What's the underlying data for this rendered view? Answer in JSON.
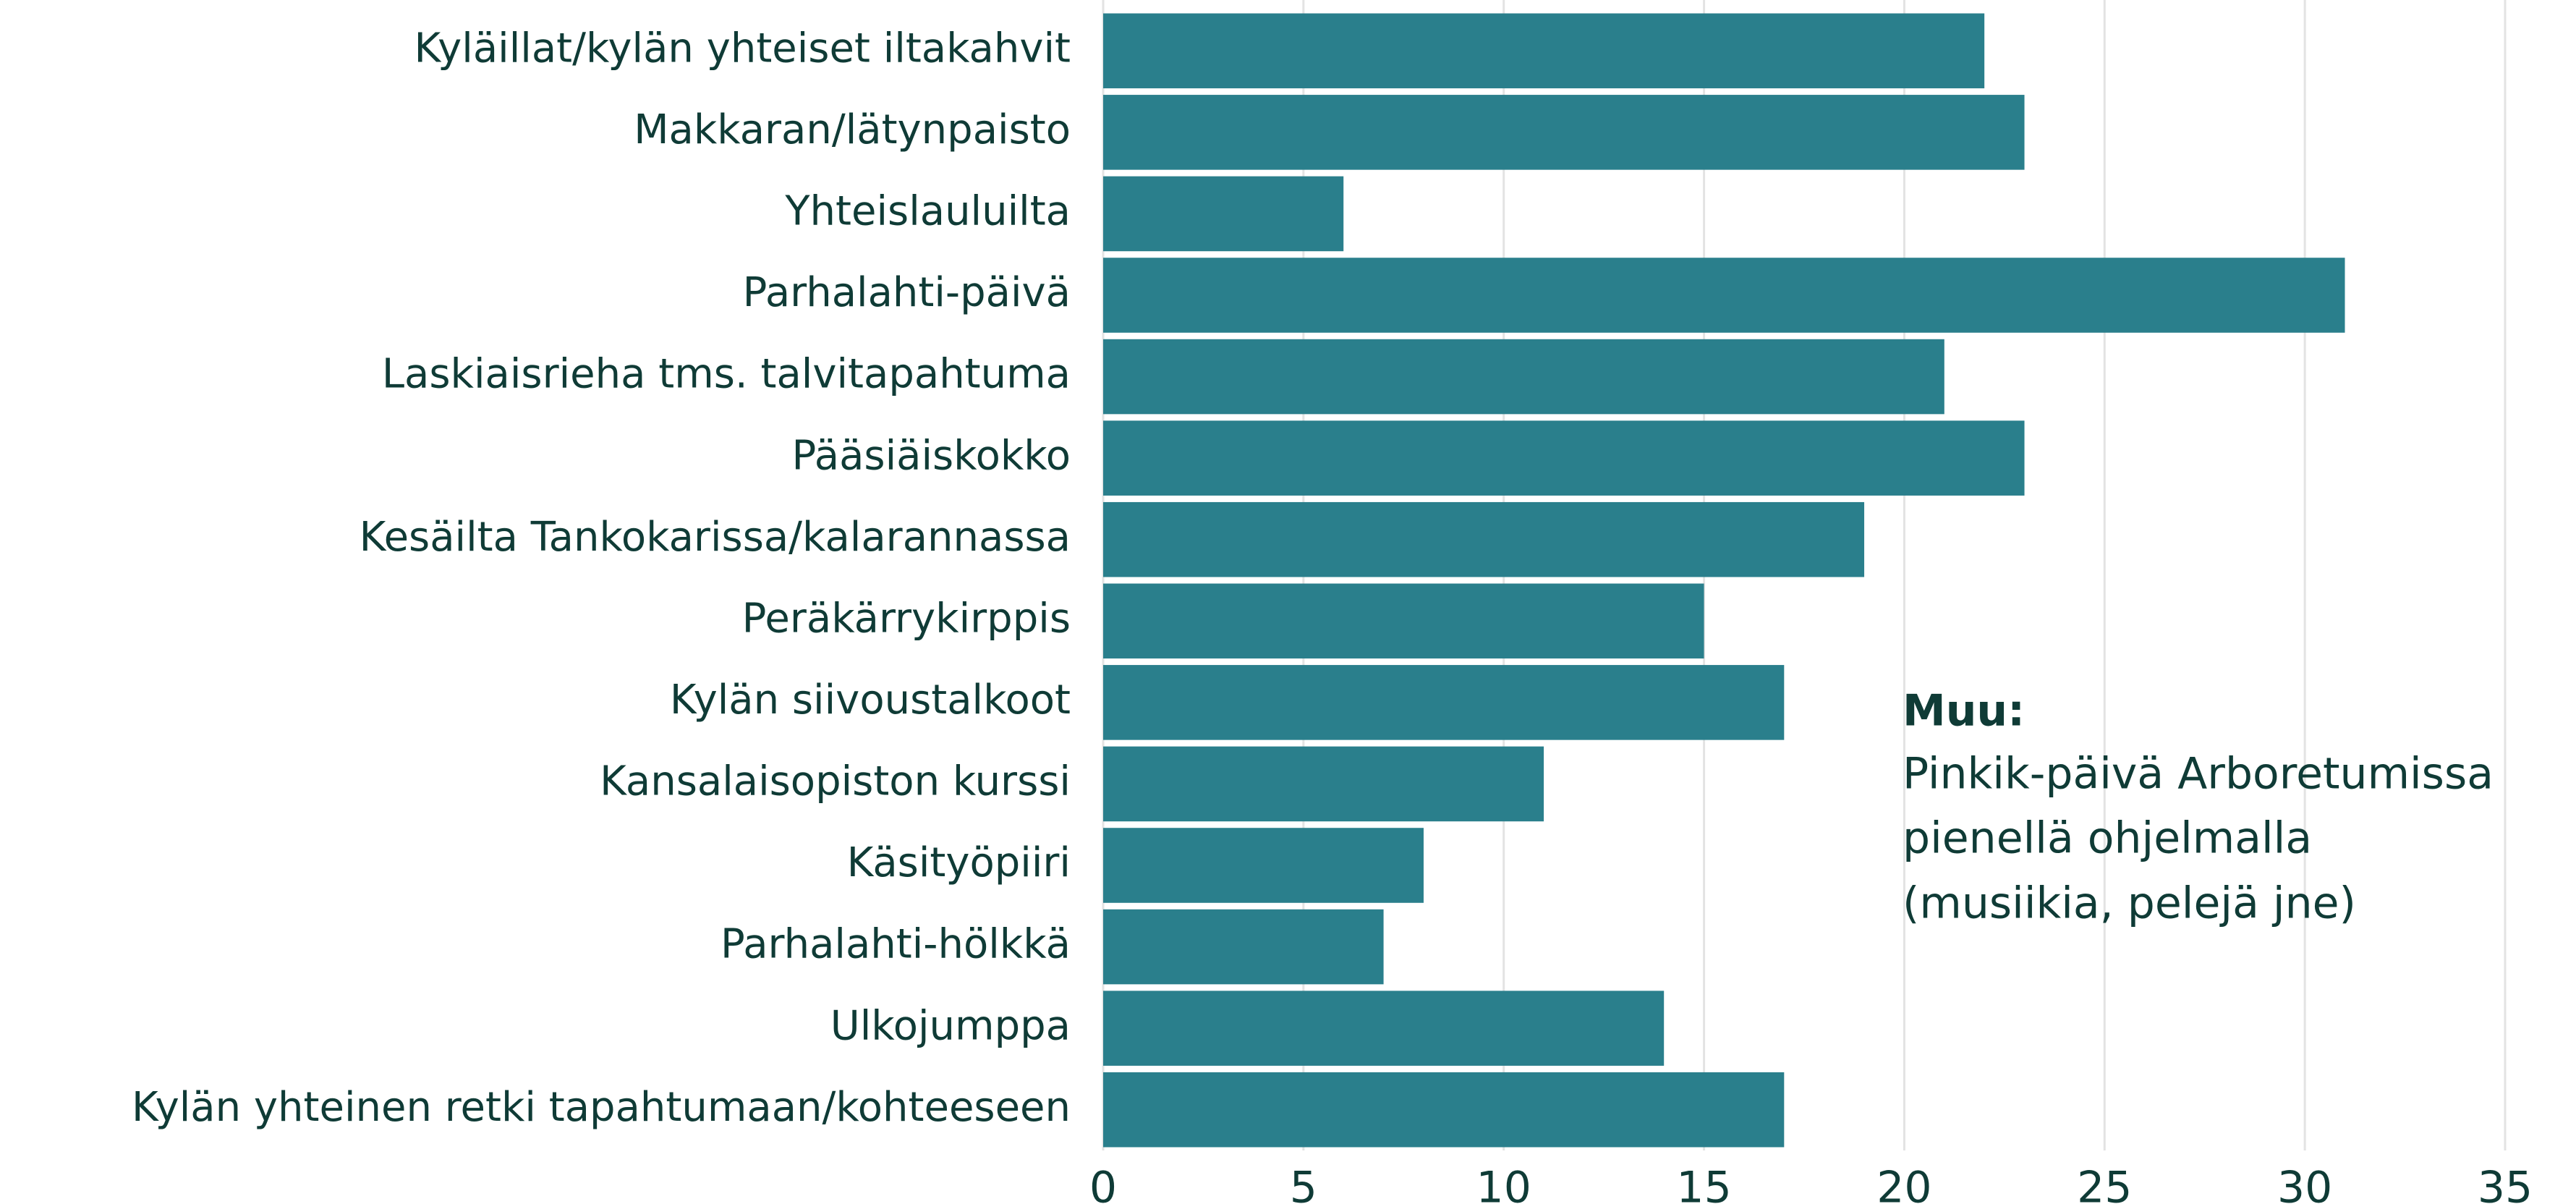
{
  "chart_data": {
    "type": "barh",
    "categories": [
      "Kyläillat/kylän yhteiset iltakahvit",
      "Makkaran/lätynpaisto",
      "Yhteislauluilta",
      "Parhalahti-päivä",
      "Laskiaisrieha tms. talvitapahtuma",
      "Pääsiäiskokko",
      "Kesäilta Tankokarissa/kalarannassa",
      "Peräkärrykirppis",
      "Kylän siivoustalkoot",
      "Kansalaisopiston kurssi",
      "Käsityöpiiri",
      "Parhalahti-hölkkä",
      "Ulkojumppa",
      "Kylän yhteinen retki tapahtumaan/kohteeseen"
    ],
    "values": [
      22,
      23,
      6,
      31,
      21,
      23,
      19,
      15,
      17,
      11,
      8,
      7,
      14,
      17
    ],
    "color": "#2a7f8c",
    "xlim": [
      0,
      35
    ],
    "xticks": [
      0,
      5,
      10,
      15,
      20,
      25,
      30,
      35
    ],
    "grid": true,
    "annotation": [
      "Muu:",
      "Pinkik-päivä Arboretumissa",
      "pienellä ohjelmalla",
      "(musiikia, pelejä jne)"
    ]
  }
}
